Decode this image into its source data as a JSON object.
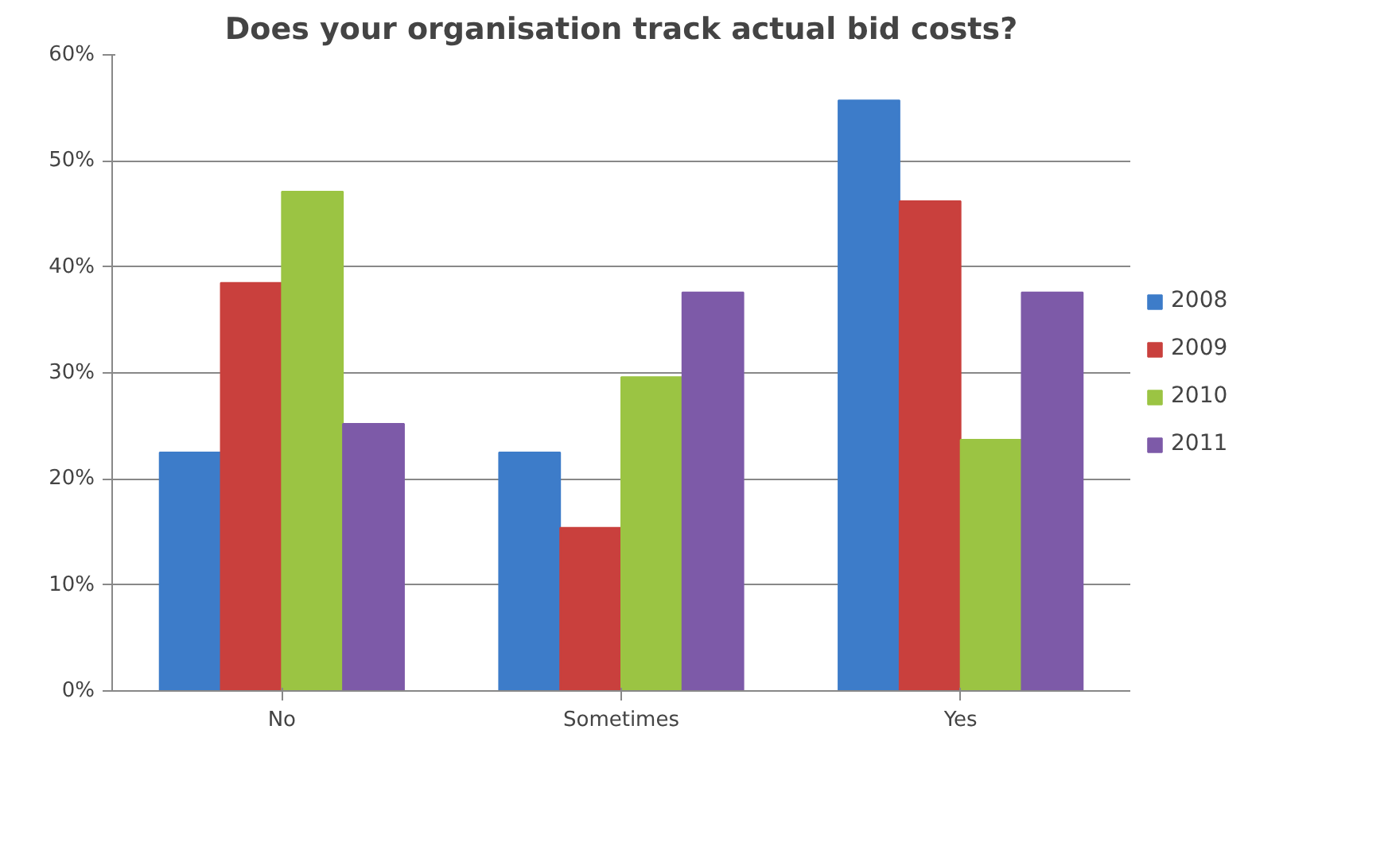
{
  "chart_data": {
    "type": "bar",
    "title": "Does your organisation track actual bid costs?",
    "categories": [
      "No",
      "Sometimes",
      "Yes"
    ],
    "series": [
      {
        "name": "2008",
        "color": "#3d7cc9",
        "values": [
          22.5,
          22.5,
          55.7
        ]
      },
      {
        "name": "2009",
        "color": "#c9403d",
        "values": [
          38.5,
          15.4,
          46.2
        ]
      },
      {
        "name": "2010",
        "color": "#9bc443",
        "values": [
          47.1,
          29.6,
          23.7
        ]
      },
      {
        "name": "2011",
        "color": "#7d5aa8",
        "values": [
          25.2,
          37.6,
          37.6
        ]
      }
    ],
    "ylim": [
      0,
      60
    ],
    "yticks": [
      {
        "value": 0,
        "label": "0%"
      },
      {
        "value": 10,
        "label": "10%"
      },
      {
        "value": 20,
        "label": "20%"
      },
      {
        "value": 30,
        "label": "30%"
      },
      {
        "value": 40,
        "label": "40%"
      },
      {
        "value": 50,
        "label": "50%"
      },
      {
        "value": 60,
        "label": "60%"
      }
    ],
    "grid": "y",
    "legend": "right"
  }
}
